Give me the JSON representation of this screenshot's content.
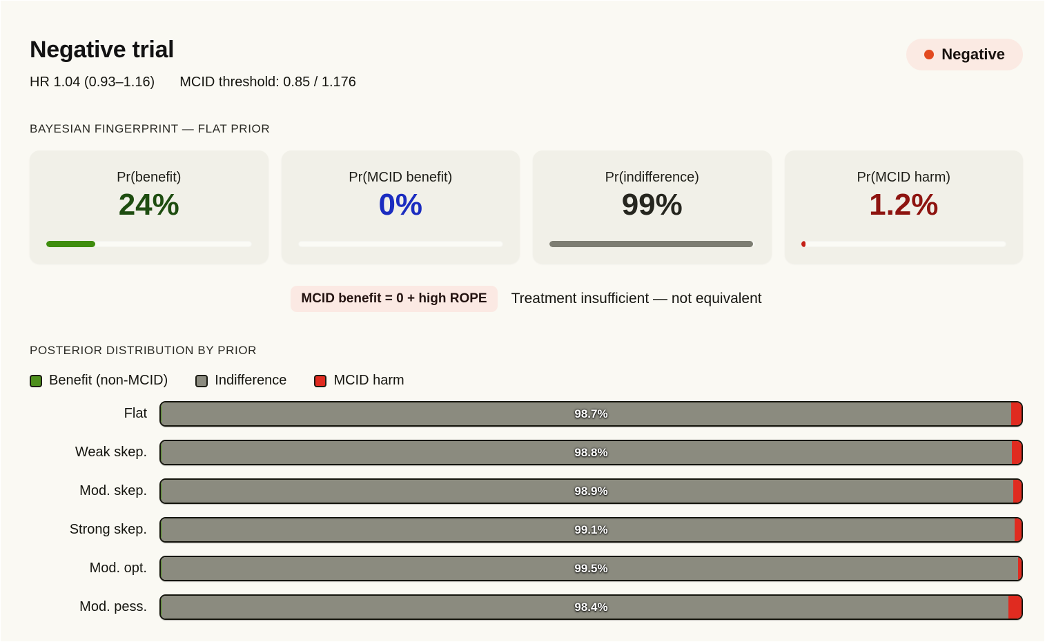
{
  "header": {
    "title": "Negative trial",
    "status_badge": {
      "label": "Negative",
      "dot_color": "#e2491f",
      "bg": "#fbeae3"
    },
    "hr_text": "HR 1.04 (0.93–1.16)",
    "mcid_text": "MCID threshold: 0.85 / 1.176"
  },
  "fingerprint": {
    "section_title": "BAYESIAN FINGERPRINT — FLAT PRIOR",
    "cards": [
      {
        "label": "Pr(benefit)",
        "value": "24%",
        "value_color": "#1e4d10",
        "fill_color": "#3f8d0e",
        "fill_pct": 24
      },
      {
        "label": "Pr(MCID benefit)",
        "value": "0%",
        "value_color": "#1b2cc0",
        "fill_color": "#1b2cc0",
        "fill_pct": 0
      },
      {
        "label": "Pr(indifference)",
        "value": "99%",
        "value_color": "#26261f",
        "fill_color": "#7d7d72",
        "fill_pct": 99
      },
      {
        "label": "Pr(MCID harm)",
        "value": "1.2%",
        "value_color": "#8e1410",
        "fill_color": "#c41f16",
        "fill_pct": 1.2
      }
    ]
  },
  "callout": {
    "badge": "MCID benefit = 0 + high ROPE",
    "text": "Treatment insufficient — not equivalent"
  },
  "posterior": {
    "section_title": "POSTERIOR DISTRIBUTION BY PRIOR"
  },
  "chart_data": {
    "type": "bar",
    "orientation": "horizontal",
    "stacked": true,
    "title": "POSTERIOR DISTRIBUTION BY PRIOR",
    "categories": [
      "Flat",
      "Weak skep.",
      "Mod. skep.",
      "Strong skep.",
      "Mod. opt.",
      "Mod. pess."
    ],
    "series": [
      {
        "name": "Benefit (non-MCID)",
        "color": "#4d8f1c",
        "values": [
          0.1,
          0.1,
          0.1,
          0.1,
          0.1,
          0.1
        ]
      },
      {
        "name": "Indifference",
        "color": "#8b8b7f",
        "values": [
          98.7,
          98.8,
          98.9,
          99.1,
          99.5,
          98.4
        ]
      },
      {
        "name": "MCID harm",
        "color": "#e02b20",
        "values": [
          1.2,
          1.1,
          1.0,
          0.8,
          0.4,
          1.5
        ]
      }
    ],
    "bar_labels": [
      "98.7%",
      "98.8%",
      "98.9%",
      "99.1%",
      "99.5%",
      "98.4%"
    ],
    "xlim": [
      0,
      100
    ],
    "legend_position": "top-left",
    "grid": false
  }
}
